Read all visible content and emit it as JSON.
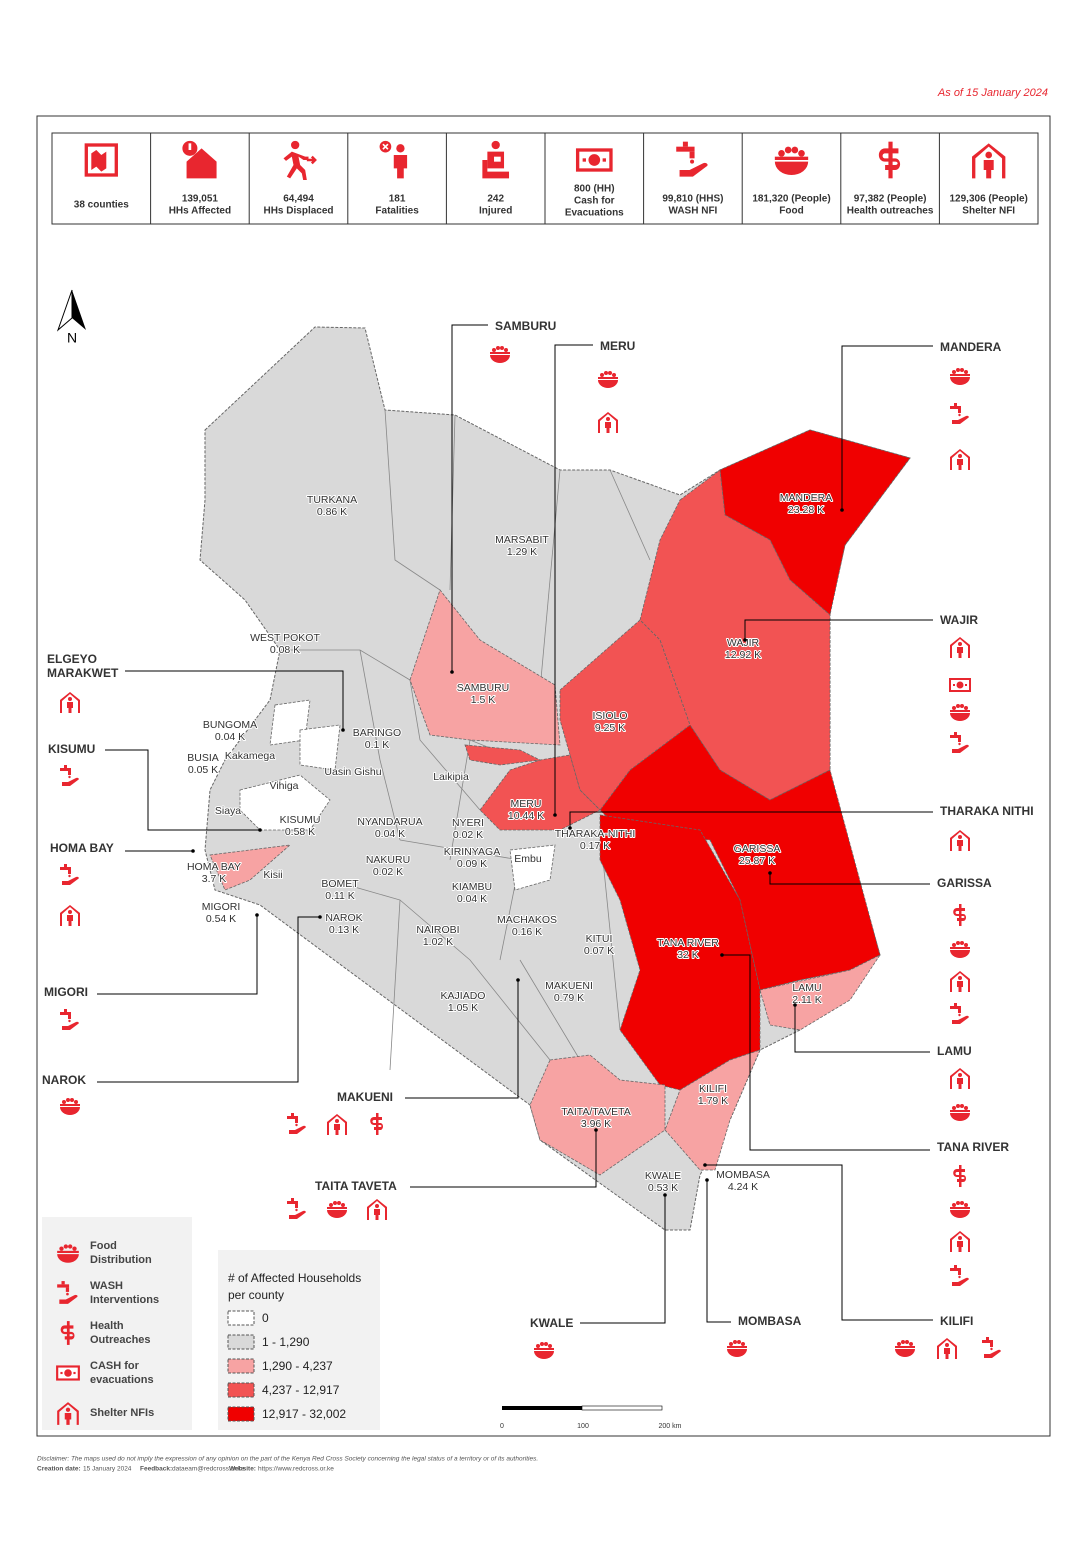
{
  "date": "As of 15 January 2024",
  "stats": [
    {
      "lines": [
        "38 counties"
      ]
    },
    {
      "lines": [
        "139,051",
        "HHs Affected"
      ]
    },
    {
      "lines": [
        "64,494",
        "HHs Displaced"
      ]
    },
    {
      "lines": [
        "181",
        "Fatalities"
      ]
    },
    {
      "lines": [
        "242",
        "Injured"
      ]
    },
    {
      "lines": [
        "800 (HH)",
        "Cash for",
        "Evacuations"
      ]
    },
    {
      "lines": [
        "99,810 (HHS)",
        "WASH NFI"
      ]
    },
    {
      "lines": [
        "181,320 (People)",
        "Food"
      ]
    },
    {
      "lines": [
        "97,382 (People)",
        "Health outreaches"
      ]
    },
    {
      "lines": [
        "129,306 (People)",
        "Shelter NFI"
      ]
    }
  ],
  "north": "N",
  "counties": [
    {
      "name": "TURKANA",
      "value": "0.86 K"
    },
    {
      "name": "MARSABIT",
      "value": "1.29 K"
    },
    {
      "name": "WEST POKOT",
      "value": "0.08 K"
    },
    {
      "name": "SAMBURU",
      "value": "1.5 K"
    },
    {
      "name": "MANDERA",
      "value": "23.28 K"
    },
    {
      "name": "WAJIR",
      "value": "12.92 K"
    },
    {
      "name": "ISIOLO",
      "value": "9.25 K"
    },
    {
      "name": "BARINGO",
      "value": "0.1 K"
    },
    {
      "name": "BUNGOMA",
      "value": "0.04 K"
    },
    {
      "name": "BUSIA",
      "value": "0.05 K"
    },
    {
      "name": "Kakamega"
    },
    {
      "name": "Uasin Gishu"
    },
    {
      "name": "Vihiga"
    },
    {
      "name": "Laikipia"
    },
    {
      "name": "Siaya"
    },
    {
      "name": "MERU",
      "value": "10.44 K"
    },
    {
      "name": "KISUMU",
      "value": "0.58 K"
    },
    {
      "name": "NYANDARUA",
      "value": "0.04 K"
    },
    {
      "name": "NYERI",
      "value": "0.02 K"
    },
    {
      "name": "THARAKA-NITHI",
      "value": "0.17 K"
    },
    {
      "name": "GARISSA",
      "value": "25.87 K"
    },
    {
      "name": "KIRINYAGA",
      "value": "0.09 K"
    },
    {
      "name": "Embu"
    },
    {
      "name": "HOMA BAY",
      "value": "3.7 K"
    },
    {
      "name": "NAKURU",
      "value": "0.02 K"
    },
    {
      "name": "Kisii"
    },
    {
      "name": "BOMET",
      "value": "0.11 K"
    },
    {
      "name": "KIAMBU",
      "value": "0.04 K"
    },
    {
      "name": "MIGORI",
      "value": "0.54 K"
    },
    {
      "name": "NAROK",
      "value": "0.13 K"
    },
    {
      "name": "MACHAKOS",
      "value": "0.16 K"
    },
    {
      "name": "NAIROBI",
      "value": "1.02 K"
    },
    {
      "name": "KITUI",
      "value": "0.07 K"
    },
    {
      "name": "TANA RIVER",
      "value": "32 K"
    },
    {
      "name": "LAMU",
      "value": "2.11 K"
    },
    {
      "name": "MAKUENI",
      "value": "0.79 K"
    },
    {
      "name": "KAJIADO",
      "value": "1.05 K"
    },
    {
      "name": "KILIFI",
      "value": "1.79 K"
    },
    {
      "name": "TAITA/TAVETA",
      "value": "3.96 K"
    },
    {
      "name": "MOMBASA",
      "value": "4.24 K"
    },
    {
      "name": "KWALE",
      "value": "0.53 K"
    }
  ],
  "callouts": [
    {
      "lines": [
        "SAMBURU"
      ]
    },
    {
      "lines": [
        "MERU"
      ]
    },
    {
      "lines": [
        "MANDERA"
      ]
    },
    {
      "lines": [
        "WAJIR"
      ]
    },
    {
      "lines": [
        "THARAKA NITHI"
      ]
    },
    {
      "lines": [
        "GARISSA"
      ]
    },
    {
      "lines": [
        "LAMU"
      ]
    },
    {
      "lines": [
        "TANA RIVER"
      ]
    },
    {
      "lines": [
        "KILIFI"
      ]
    },
    {
      "lines": [
        "MOMBASA"
      ]
    },
    {
      "lines": [
        "KWALE"
      ]
    },
    {
      "lines": [
        "TAITA TAVETA"
      ]
    },
    {
      "lines": [
        "MAKUENI"
      ]
    },
    {
      "lines": [
        "NAROK"
      ]
    },
    {
      "lines": [
        "MIGORI"
      ]
    },
    {
      "lines": [
        "HOMA BAY"
      ]
    },
    {
      "lines": [
        "KISUMU"
      ]
    },
    {
      "lines": [
        "ELGEYO",
        "MARAKWET"
      ]
    }
  ],
  "icon_legend": [
    {
      "lines": [
        "Food",
        "Distribution"
      ]
    },
    {
      "lines": [
        "WASH",
        "Interventions"
      ]
    },
    {
      "lines": [
        "Health",
        "Outreaches"
      ]
    },
    {
      "lines": [
        "CASH for",
        "evacuations"
      ]
    },
    {
      "lines": [
        "Shelter NFIs"
      ]
    }
  ],
  "legend": {
    "title": [
      "# of Affected Households",
      "per county"
    ],
    "classes": [
      "0",
      "1 - 1,290",
      "1,290 - 4,237",
      "4,237 - 12,917",
      "12,917 - 32,002"
    ],
    "colors": [
      "#ffffff",
      "#d9d9d9",
      "#f7a3a3",
      "#f25353",
      "#f00000"
    ]
  },
  "scale": [
    "0",
    "100",
    "200 km"
  ],
  "footer": {
    "disclaimer": "Disclaimer: The maps used do not imply the expression of any opinion on the part of the Kenya Red Cross Society concerning the legal status of a territory or of its authorities.",
    "creation_label": "Creation date:",
    "creation": "15 January 2024",
    "feedback_label": "Feedback:",
    "feedback": "dataeam@redcross.or.ke",
    "website_label": "Website:",
    "website": "https://www.redcross.or.ke"
  }
}
